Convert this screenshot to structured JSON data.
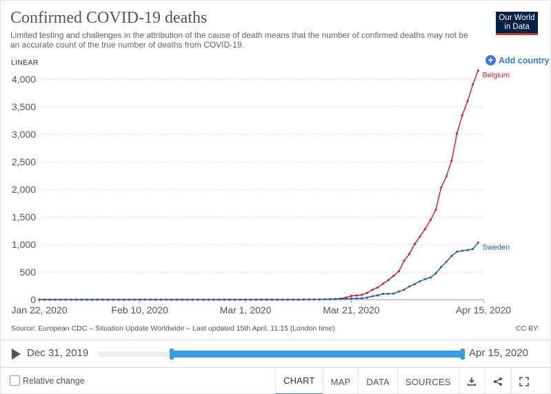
{
  "header": {
    "title": "Confirmed COVID-19 deaths",
    "subtitle": "Limited testing and challenges in the attribution of the cause of death means that the number of confirmed deaths may not be an accurate count of the true number of deaths from COVID-19.",
    "logo_line1": "Our World",
    "logo_line2": "in Data"
  },
  "controls": {
    "scale_label": "LINEAR",
    "add_country_label": "Add country"
  },
  "source": {
    "text": "Source: European CDC – Situation Update Worldwide – Last updated 15th April, 11:15 (London time)",
    "license": "CC BY"
  },
  "timeline": {
    "start_label": "Dec 31, 2019",
    "end_label": "Apr 15, 2020"
  },
  "footer": {
    "relative_change_label": "Relative change",
    "tabs": [
      {
        "label": "CHART",
        "active": true
      },
      {
        "label": "MAP",
        "active": false
      },
      {
        "label": "DATA",
        "active": false
      },
      {
        "label": "SOURCES",
        "active": false
      }
    ],
    "icons": [
      "download-icon",
      "share-icon",
      "fullscreen-icon"
    ]
  },
  "colors": {
    "belgium": "#c3282b",
    "sweden": "#2d5fa0",
    "accent": "#3b78d1",
    "timeline_range": "#3b9ce8"
  },
  "chart_data": {
    "type": "line",
    "title": "Confirmed COVID-19 deaths",
    "xlabel": "",
    "ylabel": "",
    "x_start": "2020-01-22",
    "x_end": "2020-04-15",
    "ylim": [
      0,
      4000
    ],
    "yticks": [
      0,
      500,
      1000,
      1500,
      2000,
      2500,
      3000,
      3500,
      4000
    ],
    "ytick_labels": [
      "0",
      "500",
      "1,000",
      "1,500",
      "2,000",
      "2,500",
      "3,000",
      "3,500",
      "4,000"
    ],
    "xticks": [
      {
        "date": "2020-01-22",
        "label": "Jan 22, 2020"
      },
      {
        "date": "2020-02-10",
        "label": "Feb 10, 2020"
      },
      {
        "date": "2020-03-01",
        "label": "Mar 1, 2020"
      },
      {
        "date": "2020-03-21",
        "label": "Mar 21, 2020"
      },
      {
        "date": "2020-04-15",
        "label": "Apr 15, 2020"
      }
    ],
    "grid": true,
    "series": [
      {
        "name": "Belgium",
        "points": [
          [
            "2020-01-22",
            0
          ],
          [
            "2020-01-23",
            0
          ],
          [
            "2020-01-24",
            0
          ],
          [
            "2020-01-25",
            0
          ],
          [
            "2020-01-26",
            0
          ],
          [
            "2020-01-27",
            0
          ],
          [
            "2020-01-28",
            0
          ],
          [
            "2020-01-29",
            0
          ],
          [
            "2020-01-30",
            0
          ],
          [
            "2020-01-31",
            0
          ],
          [
            "2020-02-01",
            0
          ],
          [
            "2020-02-02",
            0
          ],
          [
            "2020-02-03",
            0
          ],
          [
            "2020-02-04",
            0
          ],
          [
            "2020-02-05",
            0
          ],
          [
            "2020-02-06",
            0
          ],
          [
            "2020-02-07",
            0
          ],
          [
            "2020-02-08",
            0
          ],
          [
            "2020-02-09",
            0
          ],
          [
            "2020-02-10",
            0
          ],
          [
            "2020-02-11",
            0
          ],
          [
            "2020-02-12",
            0
          ],
          [
            "2020-02-13",
            0
          ],
          [
            "2020-02-14",
            0
          ],
          [
            "2020-02-15",
            0
          ],
          [
            "2020-02-16",
            0
          ],
          [
            "2020-02-17",
            0
          ],
          [
            "2020-02-18",
            0
          ],
          [
            "2020-02-19",
            0
          ],
          [
            "2020-02-20",
            0
          ],
          [
            "2020-02-21",
            0
          ],
          [
            "2020-02-22",
            0
          ],
          [
            "2020-02-23",
            0
          ],
          [
            "2020-02-24",
            0
          ],
          [
            "2020-02-25",
            0
          ],
          [
            "2020-02-26",
            0
          ],
          [
            "2020-02-27",
            0
          ],
          [
            "2020-02-28",
            0
          ],
          [
            "2020-02-29",
            0
          ],
          [
            "2020-03-01",
            0
          ],
          [
            "2020-03-02",
            0
          ],
          [
            "2020-03-03",
            0
          ],
          [
            "2020-03-04",
            0
          ],
          [
            "2020-03-05",
            0
          ],
          [
            "2020-03-06",
            0
          ],
          [
            "2020-03-07",
            0
          ],
          [
            "2020-03-08",
            0
          ],
          [
            "2020-03-09",
            0
          ],
          [
            "2020-03-10",
            0
          ],
          [
            "2020-03-11",
            0
          ],
          [
            "2020-03-12",
            3
          ],
          [
            "2020-03-13",
            3
          ],
          [
            "2020-03-14",
            4
          ],
          [
            "2020-03-15",
            4
          ],
          [
            "2020-03-16",
            5
          ],
          [
            "2020-03-17",
            10
          ],
          [
            "2020-03-18",
            14
          ],
          [
            "2020-03-19",
            21
          ],
          [
            "2020-03-20",
            37
          ],
          [
            "2020-03-21",
            67
          ],
          [
            "2020-03-22",
            75
          ],
          [
            "2020-03-23",
            88
          ],
          [
            "2020-03-24",
            122
          ],
          [
            "2020-03-25",
            178
          ],
          [
            "2020-03-26",
            220
          ],
          [
            "2020-03-27",
            289
          ],
          [
            "2020-03-28",
            353
          ],
          [
            "2020-03-29",
            431
          ],
          [
            "2020-03-30",
            513
          ],
          [
            "2020-03-31",
            705
          ],
          [
            "2020-04-01",
            828
          ],
          [
            "2020-04-02",
            1011
          ],
          [
            "2020-04-03",
            1143
          ],
          [
            "2020-04-04",
            1283
          ],
          [
            "2020-04-05",
            1447
          ],
          [
            "2020-04-06",
            1632
          ],
          [
            "2020-04-07",
            2035
          ],
          [
            "2020-04-08",
            2240
          ],
          [
            "2020-04-09",
            2523
          ],
          [
            "2020-04-10",
            3019
          ],
          [
            "2020-04-11",
            3346
          ],
          [
            "2020-04-12",
            3600
          ],
          [
            "2020-04-13",
            3903
          ],
          [
            "2020-04-14",
            4157
          ]
        ]
      },
      {
        "name": "Sweden",
        "points": [
          [
            "2020-01-22",
            0
          ],
          [
            "2020-01-23",
            0
          ],
          [
            "2020-01-24",
            0
          ],
          [
            "2020-01-25",
            0
          ],
          [
            "2020-01-26",
            0
          ],
          [
            "2020-01-27",
            0
          ],
          [
            "2020-01-28",
            0
          ],
          [
            "2020-01-29",
            0
          ],
          [
            "2020-01-30",
            0
          ],
          [
            "2020-01-31",
            0
          ],
          [
            "2020-02-01",
            0
          ],
          [
            "2020-02-02",
            0
          ],
          [
            "2020-02-03",
            0
          ],
          [
            "2020-02-04",
            0
          ],
          [
            "2020-02-05",
            0
          ],
          [
            "2020-02-06",
            0
          ],
          [
            "2020-02-07",
            0
          ],
          [
            "2020-02-08",
            0
          ],
          [
            "2020-02-09",
            0
          ],
          [
            "2020-02-10",
            0
          ],
          [
            "2020-02-11",
            0
          ],
          [
            "2020-02-12",
            0
          ],
          [
            "2020-02-13",
            0
          ],
          [
            "2020-02-14",
            0
          ],
          [
            "2020-02-15",
            0
          ],
          [
            "2020-02-16",
            0
          ],
          [
            "2020-02-17",
            0
          ],
          [
            "2020-02-18",
            0
          ],
          [
            "2020-02-19",
            0
          ],
          [
            "2020-02-20",
            0
          ],
          [
            "2020-02-21",
            0
          ],
          [
            "2020-02-22",
            0
          ],
          [
            "2020-02-23",
            0
          ],
          [
            "2020-02-24",
            0
          ],
          [
            "2020-02-25",
            0
          ],
          [
            "2020-02-26",
            0
          ],
          [
            "2020-02-27",
            0
          ],
          [
            "2020-02-28",
            0
          ],
          [
            "2020-02-29",
            0
          ],
          [
            "2020-03-01",
            0
          ],
          [
            "2020-03-02",
            0
          ],
          [
            "2020-03-03",
            0
          ],
          [
            "2020-03-04",
            0
          ],
          [
            "2020-03-05",
            0
          ],
          [
            "2020-03-06",
            0
          ],
          [
            "2020-03-07",
            0
          ],
          [
            "2020-03-08",
            0
          ],
          [
            "2020-03-09",
            0
          ],
          [
            "2020-03-10",
            0
          ],
          [
            "2020-03-11",
            0
          ],
          [
            "2020-03-12",
            1
          ],
          [
            "2020-03-13",
            1
          ],
          [
            "2020-03-14",
            2
          ],
          [
            "2020-03-15",
            3
          ],
          [
            "2020-03-16",
            6
          ],
          [
            "2020-03-17",
            7
          ],
          [
            "2020-03-18",
            10
          ],
          [
            "2020-03-19",
            11
          ],
          [
            "2020-03-20",
            16
          ],
          [
            "2020-03-21",
            20
          ],
          [
            "2020-03-22",
            21
          ],
          [
            "2020-03-23",
            25
          ],
          [
            "2020-03-24",
            36
          ],
          [
            "2020-03-25",
            62
          ],
          [
            "2020-03-26",
            77
          ],
          [
            "2020-03-27",
            105
          ],
          [
            "2020-03-28",
            105
          ],
          [
            "2020-03-29",
            110
          ],
          [
            "2020-03-30",
            146
          ],
          [
            "2020-03-31",
            180
          ],
          [
            "2020-04-01",
            239
          ],
          [
            "2020-04-02",
            282
          ],
          [
            "2020-04-03",
            333
          ],
          [
            "2020-04-04",
            373
          ],
          [
            "2020-04-05",
            401
          ],
          [
            "2020-04-06",
            477
          ],
          [
            "2020-04-07",
            591
          ],
          [
            "2020-04-08",
            687
          ],
          [
            "2020-04-09",
            793
          ],
          [
            "2020-04-10",
            870
          ],
          [
            "2020-04-11",
            887
          ],
          [
            "2020-04-12",
            899
          ],
          [
            "2020-04-13",
            919
          ],
          [
            "2020-04-14",
            1033
          ]
        ]
      }
    ]
  }
}
